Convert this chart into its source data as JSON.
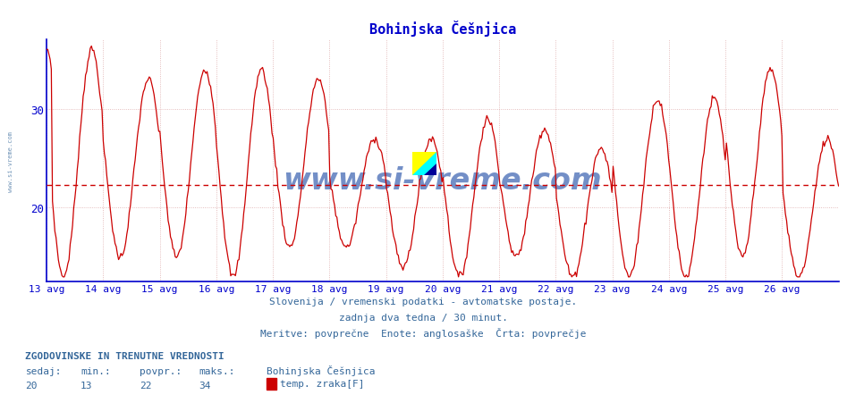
{
  "title": "Bohinjska Češnjica",
  "title_color": "#0000cc",
  "title_fontsize": 11,
  "bg_color": "#ffffff",
  "plot_bg_color": "#ffffff",
  "line_color": "#cc0000",
  "avg_line_color": "#cc0000",
  "avg_line_value": 22.3,
  "y_min": 13,
  "y_max": 37,
  "y_ticks": [
    20,
    30
  ],
  "x_labels": [
    "13 avg",
    "14 avg",
    "15 avg",
    "16 avg",
    "17 avg",
    "18 avg",
    "19 avg",
    "20 avg",
    "21 avg",
    "22 avg",
    "23 avg",
    "24 avg",
    "25 avg",
    "26 avg"
  ],
  "n_days": 14,
  "subtitle1": "Slovenija / vremenski podatki - avtomatske postaje.",
  "subtitle2": "zadnja dva tedna / 30 minut.",
  "subtitle3": "Meritve: povprečne  Enote: anglosaške  Črta: povprečje",
  "subtitle_color": "#336699",
  "subtitle_fontsize": 8,
  "footer_header": "ZGODOVINSKE IN TRENUTNE VREDNOSTI",
  "footer_sedaj_label": "sedaj:",
  "footer_min_label": "min.:",
  "footer_povpr_label": "povpr.:",
  "footer_maks_label": "maks.:",
  "footer_sedaj": "20",
  "footer_min": "13",
  "footer_povpr": "22",
  "footer_maks": "34",
  "footer_station": "Bohinjska Češnjica",
  "footer_param": "temp. zraka[F]",
  "footer_color": "#336699",
  "footer_fontsize": 8,
  "grid_color": "#ddaaaa",
  "vgrid_color": "#ddaaaa",
  "axis_color": "#0000cc",
  "watermark_text": "www.si-vreme.com",
  "watermark_color": "#003399",
  "logo_yellow": "#ffff00",
  "logo_cyan": "#00ffff",
  "logo_blue": "#000099",
  "left_text_color": "#336699",
  "left_text": "www.si-vreme.com"
}
